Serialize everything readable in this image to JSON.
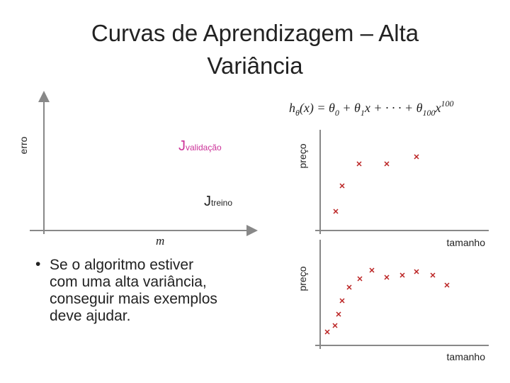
{
  "title": {
    "lines": [
      "Curvas de Aprendizagem – Alta",
      "Variância"
    ]
  },
  "formula": {
    "parts": [
      {
        "text": "h",
        "pos": "base"
      },
      {
        "text": "θ",
        "pos": "sub"
      },
      {
        "text": "(x) = θ",
        "pos": "base"
      },
      {
        "text": "0",
        "pos": "sub"
      },
      {
        "text": " + θ",
        "pos": "base"
      },
      {
        "text": "1",
        "pos": "sub"
      },
      {
        "text": "x + · · · + θ",
        "pos": "base"
      },
      {
        "text": "100",
        "pos": "sub"
      },
      {
        "text": "x",
        "pos": "base"
      },
      {
        "text": "100",
        "pos": "sup"
      }
    ]
  },
  "left_plot": {
    "y_label": "erro",
    "x_label": "m",
    "curve_validation": {
      "symbol": "J",
      "subscript": "validação"
    },
    "curve_training": {
      "symbol": "J",
      "subscript": "treino"
    }
  },
  "bullet": {
    "lines": [
      "Se o algoritmo estiver",
      "com uma alta variância,",
      "conseguir mais exemplos",
      "deve ajudar."
    ]
  },
  "top_plot": {
    "y_label": "preço",
    "x_label": "tamanho"
  },
  "bottom_plot": {
    "y_label": "preço",
    "x_label": "tamanho"
  }
}
